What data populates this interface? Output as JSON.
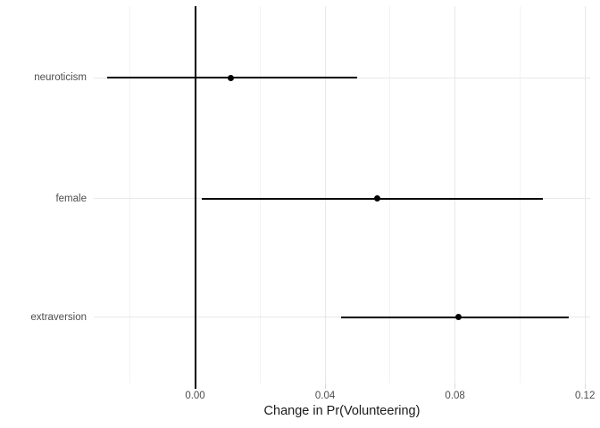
{
  "chart_data": {
    "type": "scatter",
    "subtype": "coefficient-dot-whisker-plot",
    "title": "",
    "xlabel": "Change in Pr(Volunteering)",
    "ylabel": "",
    "categories": [
      "neuroticism",
      "female",
      "extraversion"
    ],
    "points": [
      {
        "label": "neuroticism",
        "estimate": 0.011,
        "ci_low": -0.027,
        "ci_high": 0.05
      },
      {
        "label": "female",
        "estimate": 0.056,
        "ci_low": 0.002,
        "ci_high": 0.107
      },
      {
        "label": "extraversion",
        "estimate": 0.081,
        "ci_low": 0.045,
        "ci_high": 0.115
      }
    ],
    "x_ticks": [
      0.0,
      0.04,
      0.08,
      0.12
    ],
    "x_tick_labels": [
      "0.00",
      "0.04",
      "0.08",
      "0.12"
    ],
    "x_minor_ticks": [
      -0.02,
      0.02,
      0.06,
      0.1
    ],
    "xlim": [
      -0.0312,
      0.1216
    ],
    "reference_line_x": 0,
    "grid": true,
    "legend": false,
    "colors": {
      "ci_line": "#000000",
      "dot": "#000000",
      "reference_line": "#000000",
      "grid_major": "#e8e8e8",
      "grid_minor": "#f2f2f2",
      "axis_tick": "#d9d9d9",
      "axis_text": "#4d4d4d",
      "title_text": "#1a1a1a",
      "background": "#ffffff"
    }
  }
}
